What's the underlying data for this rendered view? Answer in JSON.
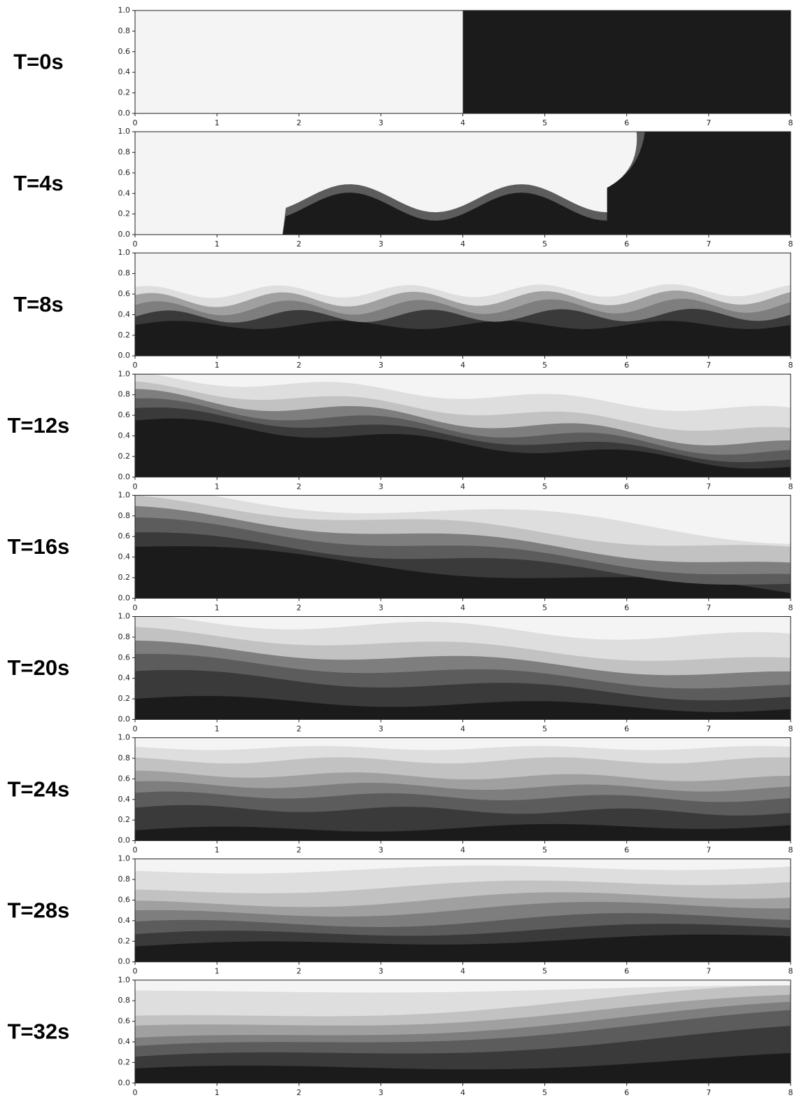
{
  "chart_data": [
    {
      "type": "contour",
      "title": "T=0s",
      "xlim": [
        0,
        8
      ],
      "ylim": [
        0,
        1
      ],
      "xticks": [
        0,
        1,
        2,
        3,
        4,
        5,
        6,
        7,
        8
      ],
      "yticks": [
        {
          "value": 0,
          "label": "0.0"
        },
        {
          "value": 0.2,
          "label": "0.2"
        },
        {
          "value": 0.4,
          "label": "0.4"
        },
        {
          "value": 0.6,
          "label": "0.6"
        },
        {
          "value": 0.8,
          "label": "0.8"
        },
        {
          "value": 1,
          "label": "1.0"
        }
      ]
    },
    {
      "type": "contour",
      "title": "T=4s",
      "xlim": [
        0,
        8
      ],
      "ylim": [
        0,
        1
      ],
      "xticks": [
        0,
        1,
        2,
        3,
        4,
        5,
        6,
        7,
        8
      ],
      "yticks": [
        {
          "value": 0,
          "label": "0.0"
        },
        {
          "value": 0.2,
          "label": "0.2"
        },
        {
          "value": 0.4,
          "label": "0.4"
        },
        {
          "value": 0.6,
          "label": "0.6"
        },
        {
          "value": 0.8,
          "label": "0.8"
        },
        {
          "value": 1,
          "label": "1.0"
        }
      ]
    },
    {
      "type": "contour",
      "title": "T=8s",
      "xlim": [
        0,
        8
      ],
      "ylim": [
        0,
        1
      ],
      "xticks": [
        0,
        1,
        2,
        3,
        4,
        5,
        6,
        7,
        8
      ],
      "yticks": [
        {
          "value": 0,
          "label": "0.0"
        },
        {
          "value": 0.2,
          "label": "0.2"
        },
        {
          "value": 0.4,
          "label": "0.4"
        },
        {
          "value": 0.6,
          "label": "0.6"
        },
        {
          "value": 0.8,
          "label": "0.8"
        },
        {
          "value": 1,
          "label": "1.0"
        }
      ]
    },
    {
      "type": "contour",
      "title": "T=12s",
      "xlim": [
        0,
        8
      ],
      "ylim": [
        0,
        1
      ],
      "xticks": [
        0,
        1,
        2,
        3,
        4,
        5,
        6,
        7,
        8
      ],
      "yticks": [
        {
          "value": 0,
          "label": "0.0"
        },
        {
          "value": 0.2,
          "label": "0.2"
        },
        {
          "value": 0.4,
          "label": "0.4"
        },
        {
          "value": 0.6,
          "label": "0.6"
        },
        {
          "value": 0.8,
          "label": "0.8"
        },
        {
          "value": 1,
          "label": "1.0"
        }
      ]
    },
    {
      "type": "contour",
      "title": "T=16s",
      "xlim": [
        0,
        8
      ],
      "ylim": [
        0,
        1
      ],
      "xticks": [
        0,
        1,
        2,
        3,
        4,
        5,
        6,
        7,
        8
      ],
      "yticks": [
        {
          "value": 0,
          "label": "0.0"
        },
        {
          "value": 0.2,
          "label": "0.2"
        },
        {
          "value": 0.4,
          "label": "0.4"
        },
        {
          "value": 0.6,
          "label": "0.6"
        },
        {
          "value": 0.8,
          "label": "0.8"
        },
        {
          "value": 1,
          "label": "1.0"
        }
      ]
    },
    {
      "type": "contour",
      "title": "T=20s",
      "xlim": [
        0,
        8
      ],
      "ylim": [
        0,
        1
      ],
      "xticks": [
        0,
        1,
        2,
        3,
        4,
        5,
        6,
        7,
        8
      ],
      "yticks": [
        {
          "value": 0,
          "label": "0.0"
        },
        {
          "value": 0.2,
          "label": "0.2"
        },
        {
          "value": 0.4,
          "label": "0.4"
        },
        {
          "value": 0.6,
          "label": "0.6"
        },
        {
          "value": 0.8,
          "label": "0.8"
        },
        {
          "value": 1,
          "label": "1.0"
        }
      ]
    },
    {
      "type": "contour",
      "title": "T=24s",
      "xlim": [
        0,
        8
      ],
      "ylim": [
        0,
        1
      ],
      "xticks": [
        0,
        1,
        2,
        3,
        4,
        5,
        6,
        7,
        8
      ],
      "yticks": [
        {
          "value": 0,
          "label": "0.0"
        },
        {
          "value": 0.2,
          "label": "0.2"
        },
        {
          "value": 0.4,
          "label": "0.4"
        },
        {
          "value": 0.6,
          "label": "0.6"
        },
        {
          "value": 0.8,
          "label": "0.8"
        },
        {
          "value": 1,
          "label": "1.0"
        }
      ]
    },
    {
      "type": "contour",
      "title": "T=28s",
      "xlim": [
        0,
        8
      ],
      "ylim": [
        0,
        1
      ],
      "xticks": [
        0,
        1,
        2,
        3,
        4,
        5,
        6,
        7,
        8
      ],
      "yticks": [
        {
          "value": 0,
          "label": "0.0"
        },
        {
          "value": 0.2,
          "label": "0.2"
        },
        {
          "value": 0.4,
          "label": "0.4"
        },
        {
          "value": 0.6,
          "label": "0.6"
        },
        {
          "value": 0.8,
          "label": "0.8"
        },
        {
          "value": 1,
          "label": "1.0"
        }
      ]
    },
    {
      "type": "contour",
      "title": "T=32s",
      "xlim": [
        0,
        8
      ],
      "ylim": [
        0,
        1
      ],
      "xticks": [
        0,
        1,
        2,
        3,
        4,
        5,
        6,
        7,
        8
      ],
      "yticks": [
        {
          "value": 0,
          "label": "0.0"
        },
        {
          "value": 0.2,
          "label": "0.2"
        },
        {
          "value": 0.4,
          "label": "0.4"
        },
        {
          "value": 0.6,
          "label": "0.6"
        },
        {
          "value": 0.8,
          "label": "0.8"
        },
        {
          "value": 1,
          "label": "1.0"
        }
      ]
    }
  ]
}
